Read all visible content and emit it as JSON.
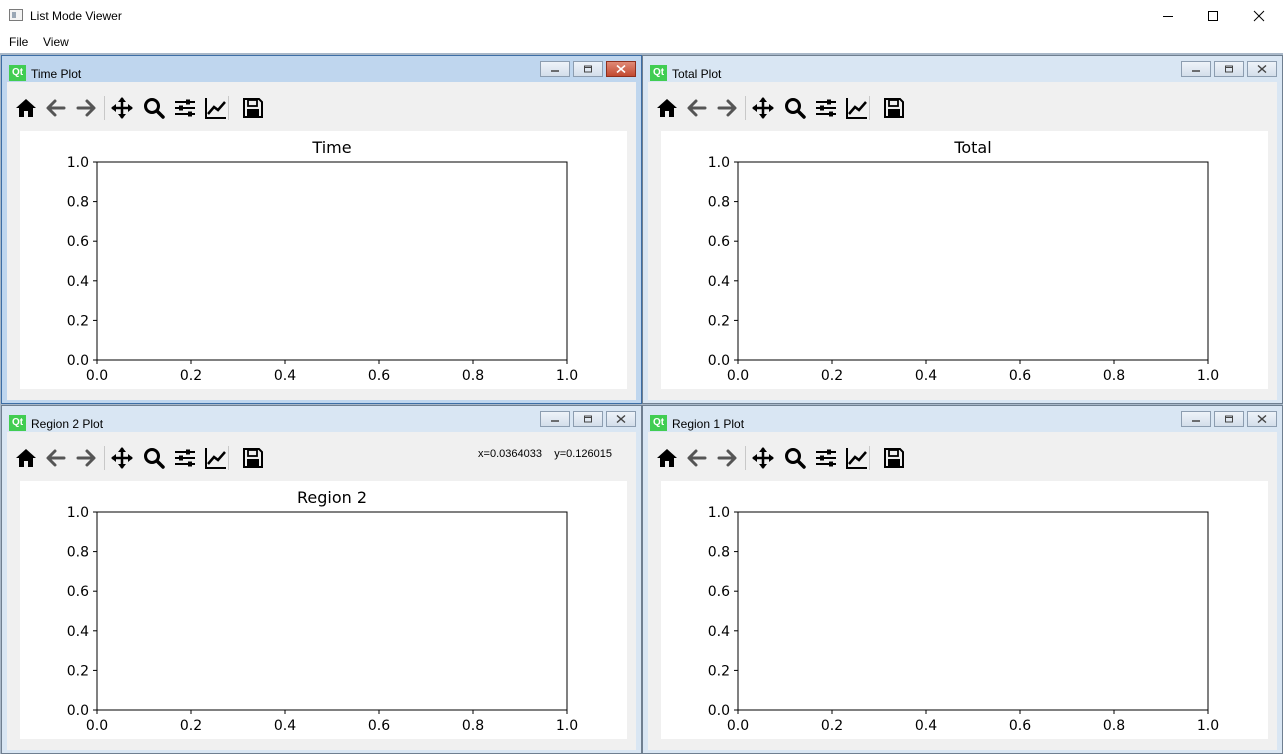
{
  "app": {
    "title": "List Mode Viewer"
  },
  "menu": [
    {
      "label": "File"
    },
    {
      "label": "View"
    }
  ],
  "windows": [
    {
      "title": "Time Plot",
      "active": true,
      "plot_title": "Time",
      "coords": ""
    },
    {
      "title": "Total Plot",
      "active": false,
      "plot_title": "Total",
      "coords": ""
    },
    {
      "title": "Region 2 Plot",
      "active": false,
      "plot_title": "Region 2",
      "coords": "x=0.0364033    y=0.126015"
    },
    {
      "title": "Region 1 Plot",
      "active": false,
      "plot_title": "",
      "coords": ""
    }
  ],
  "toolbar_icons": [
    "home-icon",
    "back-arrow-icon",
    "forward-arrow-icon",
    "pan-icon",
    "zoom-icon",
    "subplots-icon",
    "edit-axes-icon",
    "save-icon"
  ],
  "chart_data": [
    {
      "type": "line",
      "title": "Time",
      "series": [],
      "xlim": [
        0.0,
        1.0
      ],
      "ylim": [
        0.0,
        1.0
      ],
      "xticks": [
        "0.0",
        "0.2",
        "0.4",
        "0.6",
        "0.8",
        "1.0"
      ],
      "yticks": [
        "0.0",
        "0.2",
        "0.4",
        "0.6",
        "0.8",
        "1.0"
      ]
    },
    {
      "type": "line",
      "title": "Total",
      "series": [],
      "xlim": [
        0.0,
        1.0
      ],
      "ylim": [
        0.0,
        1.0
      ],
      "xticks": [
        "0.0",
        "0.2",
        "0.4",
        "0.6",
        "0.8",
        "1.0"
      ],
      "yticks": [
        "0.0",
        "0.2",
        "0.4",
        "0.6",
        "0.8",
        "1.0"
      ]
    },
    {
      "type": "line",
      "title": "Region 2",
      "series": [],
      "xlim": [
        0.0,
        1.0
      ],
      "ylim": [
        0.0,
        1.0
      ],
      "xticks": [
        "0.0",
        "0.2",
        "0.4",
        "0.6",
        "0.8",
        "1.0"
      ],
      "yticks": [
        "0.0",
        "0.2",
        "0.4",
        "0.6",
        "0.8",
        "1.0"
      ]
    },
    {
      "type": "line",
      "title": "",
      "series": [],
      "xlim": [
        0.0,
        1.0
      ],
      "ylim": [
        0.0,
        1.0
      ],
      "xticks": [
        "0.0",
        "0.2",
        "0.4",
        "0.6",
        "0.8",
        "1.0"
      ],
      "yticks": [
        "0.0",
        "0.2",
        "0.4",
        "0.6",
        "0.8",
        "1.0"
      ]
    }
  ]
}
